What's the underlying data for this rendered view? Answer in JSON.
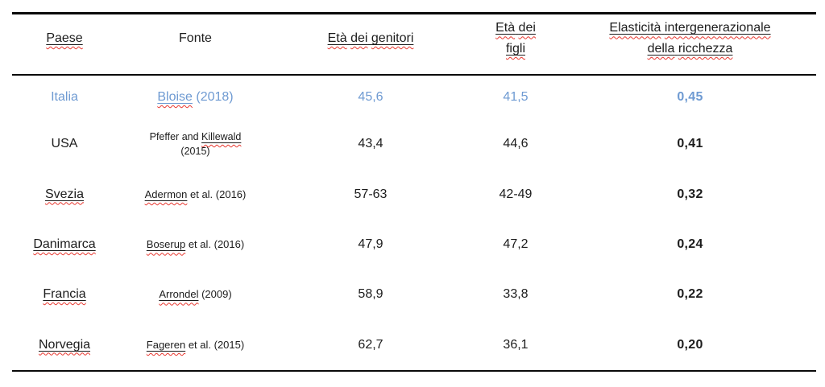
{
  "table": {
    "title_semantics": "Intergenerational wealth elasticity by country",
    "colors": {
      "highlight_blue": "#6e9ad2",
      "squiggle_red": "#e8372f",
      "text": "#1c1c1c"
    },
    "headers": {
      "paese": "Paese",
      "fonte": "Fonte",
      "eta_genitori": "Età dei genitori",
      "eta_figli_line1": "Età dei",
      "eta_figli_line2": "figli",
      "elasticita_line1": "Elasticità intergenerazionale",
      "elasticita_line2": "della ricchezza"
    },
    "rows": [
      {
        "country": "Italia",
        "source_prefix": "",
        "source_flagged": "Bloise",
        "source_suffix": " (2018)",
        "source_line2": "",
        "eta_genitori": "45,6",
        "eta_figli": "41,5",
        "elasticita": "0,45"
      },
      {
        "country": "USA",
        "source_prefix": "Pfeffer and ",
        "source_flagged": "Killewald",
        "source_suffix": "",
        "source_line2": "(2015)",
        "eta_genitori": "43,4",
        "eta_figli": "44,6",
        "elasticita": "0,41"
      },
      {
        "country": "Svezia",
        "source_prefix": "",
        "source_flagged": "Adermon",
        "source_suffix": " et al. (2016)",
        "source_line2": "",
        "eta_genitori": "57-63",
        "eta_figli": "42-49",
        "elasticita": "0,32"
      },
      {
        "country": "Danimarca",
        "source_prefix": "",
        "source_flagged": "Boserup",
        "source_suffix": " et al. (2016)",
        "source_line2": "",
        "eta_genitori": "47,9",
        "eta_figli": "47,2",
        "elasticita": "0,24"
      },
      {
        "country": "Francia",
        "source_prefix": "",
        "source_flagged": "Arrondel",
        "source_suffix": " (2009)",
        "source_line2": "",
        "eta_genitori": "58,9",
        "eta_figli": "33,8",
        "elasticita": "0,22"
      },
      {
        "country": "Norvegia",
        "source_prefix": "",
        "source_flagged": "Fageren",
        "source_suffix": " et al. (2015)",
        "source_line2": "",
        "eta_genitori": "62,7",
        "eta_figli": "36,1",
        "elasticita": "0,20"
      }
    ]
  }
}
